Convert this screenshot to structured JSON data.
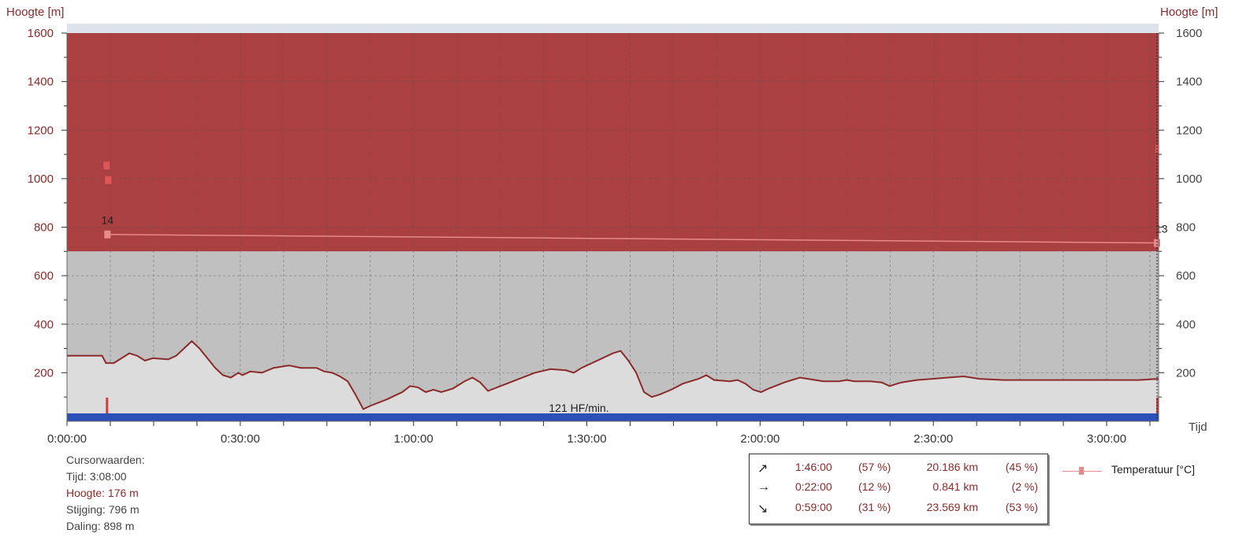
{
  "chart_data": {
    "type": "area",
    "ylabel_left": "Hoogte [m]",
    "ylabel_right": "Hoogte [m]",
    "xlabel": "Tijd",
    "ylim": [
      0,
      1600
    ],
    "yticks": [
      200,
      400,
      600,
      800,
      1000,
      1200,
      1400,
      1600
    ],
    "xlim_minutes": [
      0,
      189
    ],
    "xticks": [
      {
        "minutes": 0,
        "label": "0:00:00"
      },
      {
        "minutes": 30,
        "label": "0:30:00"
      },
      {
        "minutes": 60,
        "label": "1:00:00"
      },
      {
        "minutes": 90,
        "label": "1:30:00"
      },
      {
        "minutes": 120,
        "label": "2:00:00"
      },
      {
        "minutes": 150,
        "label": "2:30:00"
      },
      {
        "minutes": 180,
        "label": "3:00:00"
      }
    ],
    "grid": true,
    "zones": [
      {
        "from": 700,
        "to": 1600,
        "color": "#ab4043"
      },
      {
        "from": 0,
        "to": 700,
        "color": "#c0c0c0"
      }
    ],
    "series": [
      {
        "type": "area",
        "color": "#8b2a2a",
        "fill": "#dcdcdc",
        "points": [
          [
            0,
            270
          ],
          [
            9,
            270
          ],
          [
            10,
            240
          ],
          [
            12,
            240
          ],
          [
            14,
            260
          ],
          [
            16,
            280
          ],
          [
            18,
            270
          ],
          [
            20,
            250
          ],
          [
            22,
            260
          ],
          [
            26,
            255
          ],
          [
            28,
            270
          ],
          [
            30,
            300
          ],
          [
            32,
            330
          ],
          [
            34,
            300
          ],
          [
            36,
            260
          ],
          [
            38,
            220
          ],
          [
            40,
            190
          ],
          [
            42,
            180
          ],
          [
            44,
            200
          ],
          [
            45,
            190
          ],
          [
            47,
            205
          ],
          [
            50,
            200
          ],
          [
            53,
            220
          ],
          [
            57,
            230
          ],
          [
            60,
            220
          ],
          [
            64,
            220
          ],
          [
            66,
            205
          ],
          [
            68,
            200
          ],
          [
            70,
            185
          ],
          [
            72,
            165
          ],
          [
            74,
            110
          ],
          [
            76,
            50
          ],
          [
            78,
            65
          ],
          [
            82,
            90
          ],
          [
            86,
            120
          ],
          [
            88,
            145
          ],
          [
            90,
            140
          ],
          [
            92,
            120
          ],
          [
            94,
            130
          ],
          [
            96,
            120
          ],
          [
            99,
            135
          ],
          [
            102,
            165
          ],
          [
            104,
            180
          ],
          [
            106,
            160
          ],
          [
            108,
            125
          ],
          [
            112,
            150
          ],
          [
            116,
            175
          ],
          [
            120,
            200
          ],
          [
            124,
            215
          ],
          [
            128,
            210
          ],
          [
            130,
            200
          ],
          [
            132,
            220
          ],
          [
            136,
            250
          ],
          [
            140,
            280
          ],
          [
            142,
            290
          ],
          [
            144,
            250
          ],
          [
            146,
            200
          ],
          [
            148,
            120
          ],
          [
            150,
            100
          ],
          [
            152,
            110
          ],
          [
            155,
            130
          ],
          [
            158,
            155
          ],
          [
            162,
            175
          ],
          [
            164,
            190
          ],
          [
            166,
            170
          ],
          [
            170,
            165
          ],
          [
            172,
            170
          ],
          [
            174,
            155
          ],
          [
            176,
            130
          ],
          [
            178,
            120
          ],
          [
            180,
            135
          ],
          [
            184,
            160
          ],
          [
            188,
            180
          ],
          [
            190,
            175
          ],
          [
            194,
            165
          ],
          [
            198,
            165
          ],
          [
            200,
            170
          ],
          [
            202,
            165
          ],
          [
            206,
            165
          ],
          [
            209,
            160
          ],
          [
            211,
            145
          ],
          [
            214,
            160
          ],
          [
            218,
            170
          ],
          [
            222,
            175
          ],
          [
            226,
            180
          ],
          [
            230,
            185
          ],
          [
            234,
            175
          ],
          [
            240,
            170
          ],
          [
            250,
            170
          ],
          [
            260,
            170
          ],
          [
            275,
            170
          ],
          [
            280,
            175
          ]
        ]
      },
      {
        "name": "Temperatuur [°C]",
        "type": "line",
        "color": "#e88a8a",
        "start_label": "14",
        "end_label": "13",
        "points": [
          [
            7,
            770
          ],
          [
            189,
            735
          ]
        ]
      }
    ],
    "hr_band": {
      "label": "121 HF/min.",
      "color": "#2b50b8"
    },
    "legend": {
      "placement": "bottom-right",
      "label": "Temperatuur [°C]"
    }
  },
  "cursor": {
    "title": "Cursorwaarden:",
    "time": "Tijd: 3:08:00",
    "height": "Hoogte: 176 m",
    "ascent": "Stijging: 796 m",
    "descent": "Daling: 898 m"
  },
  "stats": {
    "rows": [
      {
        "icon": "↗",
        "time": "1:46:00",
        "pct": "(57 %)",
        "dist": "20.186 km",
        "dpct": "(45 %)"
      },
      {
        "icon": "→",
        "time": "0:22:00",
        "pct": "(12 %)",
        "dist": "0.841 km",
        "dpct": "(2 %)"
      },
      {
        "icon": "↘",
        "time": "0:59:00",
        "pct": "(31 %)",
        "dist": "23.569 km",
        "dpct": "(53 %)"
      }
    ]
  }
}
